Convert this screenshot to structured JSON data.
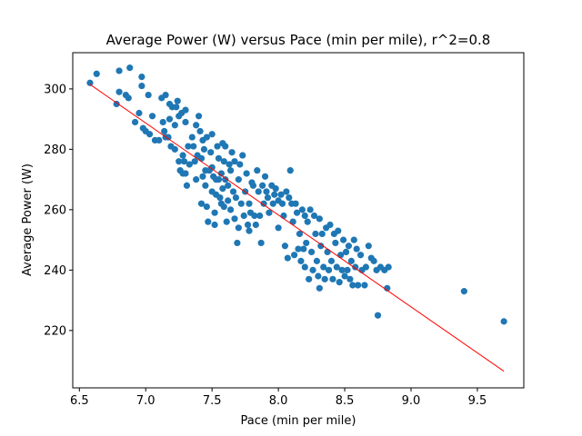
{
  "chart_data": {
    "type": "scatter",
    "title": "Average Power (W) versus Pace (min per mile), r^2=0.8",
    "xlabel": "Pace (min per mile)",
    "ylabel": "Average Power (W)",
    "xlim": [
      6.45,
      9.85
    ],
    "ylim": [
      201,
      312
    ],
    "xticks": [
      6.5,
      7.0,
      7.5,
      8.0,
      8.5,
      9.0,
      9.5
    ],
    "xtick_labels": [
      "6.5",
      "7.0",
      "7.5",
      "8.0",
      "8.5",
      "9.0",
      "9.5"
    ],
    "yticks": [
      220,
      240,
      260,
      280,
      300
    ],
    "ytick_labels": [
      "220",
      "240",
      "260",
      "280",
      "300"
    ],
    "grid": false,
    "colors": {
      "points": "#1f77b4",
      "fit": "#ff0000"
    },
    "fit_line": {
      "x": [
        6.58,
        9.7
      ],
      "y": [
        301.5,
        206.5
      ]
    },
    "points": [
      [
        6.58,
        302
      ],
      [
        6.63,
        305
      ],
      [
        6.78,
        295
      ],
      [
        6.8,
        306
      ],
      [
        6.8,
        299
      ],
      [
        6.85,
        298
      ],
      [
        6.87,
        297
      ],
      [
        6.88,
        307
      ],
      [
        6.92,
        289
      ],
      [
        6.95,
        292
      ],
      [
        6.97,
        304
      ],
      [
        6.97,
        301
      ],
      [
        6.98,
        287
      ],
      [
        7.0,
        286
      ],
      [
        7.02,
        298
      ],
      [
        7.03,
        285
      ],
      [
        7.05,
        291
      ],
      [
        7.07,
        283
      ],
      [
        7.1,
        283
      ],
      [
        7.12,
        297
      ],
      [
        7.13,
        289
      ],
      [
        7.14,
        286
      ],
      [
        7.15,
        298
      ],
      [
        7.15,
        284
      ],
      [
        7.17,
        284
      ],
      [
        7.18,
        295
      ],
      [
        7.18,
        290
      ],
      [
        7.19,
        281
      ],
      [
        7.2,
        294
      ],
      [
        7.22,
        288
      ],
      [
        7.22,
        280
      ],
      [
        7.23,
        294
      ],
      [
        7.24,
        296
      ],
      [
        7.25,
        291
      ],
      [
        7.25,
        276
      ],
      [
        7.26,
        273
      ],
      [
        7.27,
        292
      ],
      [
        7.28,
        278
      ],
      [
        7.28,
        272
      ],
      [
        7.29,
        276
      ],
      [
        7.3,
        293
      ],
      [
        7.3,
        289
      ],
      [
        7.3,
        272
      ],
      [
        7.31,
        268
      ],
      [
        7.32,
        281
      ],
      [
        7.33,
        275
      ],
      [
        7.35,
        284
      ],
      [
        7.36,
        281
      ],
      [
        7.37,
        276
      ],
      [
        7.38,
        288
      ],
      [
        7.38,
        270
      ],
      [
        7.39,
        278
      ],
      [
        7.4,
        291
      ],
      [
        7.41,
        286
      ],
      [
        7.42,
        277
      ],
      [
        7.42,
        262
      ],
      [
        7.43,
        283
      ],
      [
        7.43,
        271
      ],
      [
        7.44,
        280
      ],
      [
        7.45,
        273
      ],
      [
        7.45,
        268
      ],
      [
        7.46,
        284
      ],
      [
        7.46,
        261
      ],
      [
        7.47,
        256
      ],
      [
        7.48,
        273
      ],
      [
        7.49,
        279
      ],
      [
        7.5,
        285
      ],
      [
        7.5,
        274
      ],
      [
        7.5,
        266
      ],
      [
        7.51,
        271
      ],
      [
        7.52,
        259
      ],
      [
        7.52,
        255
      ],
      [
        7.53,
        270
      ],
      [
        7.53,
        265
      ],
      [
        7.54,
        281
      ],
      [
        7.55,
        277
      ],
      [
        7.55,
        270
      ],
      [
        7.56,
        264
      ],
      [
        7.57,
        272
      ],
      [
        7.57,
        262
      ],
      [
        7.58,
        282
      ],
      [
        7.58,
        267
      ],
      [
        7.59,
        276
      ],
      [
        7.59,
        261
      ],
      [
        7.6,
        281
      ],
      [
        7.6,
        270
      ],
      [
        7.61,
        256
      ],
      [
        7.62,
        268
      ],
      [
        7.62,
        263
      ],
      [
        7.63,
        275
      ],
      [
        7.64,
        273
      ],
      [
        7.64,
        260
      ],
      [
        7.65,
        279
      ],
      [
        7.66,
        266
      ],
      [
        7.67,
        276
      ],
      [
        7.67,
        257
      ],
      [
        7.68,
        264
      ],
      [
        7.69,
        249
      ],
      [
        7.7,
        270
      ],
      [
        7.7,
        254
      ],
      [
        7.71,
        275
      ],
      [
        7.72,
        262
      ],
      [
        7.73,
        278
      ],
      [
        7.74,
        258
      ],
      [
        7.75,
        266
      ],
      [
        7.76,
        272
      ],
      [
        7.77,
        255
      ],
      [
        7.78,
        262
      ],
      [
        7.78,
        253
      ],
      [
        7.79,
        259
      ],
      [
        7.8,
        269
      ],
      [
        7.81,
        268
      ],
      [
        7.82,
        258
      ],
      [
        7.83,
        255
      ],
      [
        7.84,
        273
      ],
      [
        7.85,
        266
      ],
      [
        7.86,
        258
      ],
      [
        7.87,
        249
      ],
      [
        7.88,
        268
      ],
      [
        7.89,
        262
      ],
      [
        7.9,
        271
      ],
      [
        7.91,
        266
      ],
      [
        7.92,
        264
      ],
      [
        7.93,
        259
      ],
      [
        7.95,
        268
      ],
      [
        7.96,
        262
      ],
      [
        7.97,
        265
      ],
      [
        7.98,
        267
      ],
      [
        8.0,
        263
      ],
      [
        8.0,
        254
      ],
      [
        8.02,
        265
      ],
      [
        8.03,
        262
      ],
      [
        8.04,
        258
      ],
      [
        8.05,
        248
      ],
      [
        8.06,
        266
      ],
      [
        8.07,
        244
      ],
      [
        8.08,
        264
      ],
      [
        8.09,
        273
      ],
      [
        8.1,
        262
      ],
      [
        8.11,
        256
      ],
      [
        8.12,
        245
      ],
      [
        8.13,
        262
      ],
      [
        8.14,
        259
      ],
      [
        8.15,
        247
      ],
      [
        8.16,
        252
      ],
      [
        8.17,
        243
      ],
      [
        8.18,
        260
      ],
      [
        8.19,
        247
      ],
      [
        8.2,
        258
      ],
      [
        8.2,
        241
      ],
      [
        8.21,
        249
      ],
      [
        8.22,
        256
      ],
      [
        8.23,
        237
      ],
      [
        8.24,
        260
      ],
      [
        8.25,
        246
      ],
      [
        8.26,
        240
      ],
      [
        8.27,
        258
      ],
      [
        8.28,
        252
      ],
      [
        8.29,
        243
      ],
      [
        8.3,
        238
      ],
      [
        8.31,
        257
      ],
      [
        8.31,
        234
      ],
      [
        8.32,
        248
      ],
      [
        8.33,
        252
      ],
      [
        8.34,
        241
      ],
      [
        8.35,
        237
      ],
      [
        8.36,
        254
      ],
      [
        8.37,
        246
      ],
      [
        8.38,
        240
      ],
      [
        8.39,
        255
      ],
      [
        8.4,
        243
      ],
      [
        8.41,
        237
      ],
      [
        8.42,
        252
      ],
      [
        8.43,
        249
      ],
      [
        8.44,
        241
      ],
      [
        8.45,
        253
      ],
      [
        8.46,
        236
      ],
      [
        8.47,
        245
      ],
      [
        8.48,
        240
      ],
      [
        8.49,
        250
      ],
      [
        8.5,
        238
      ],
      [
        8.51,
        246
      ],
      [
        8.52,
        240
      ],
      [
        8.53,
        248
      ],
      [
        8.54,
        237
      ],
      [
        8.55,
        243
      ],
      [
        8.56,
        235
      ],
      [
        8.57,
        250
      ],
      [
        8.58,
        241
      ],
      [
        8.59,
        247
      ],
      [
        8.6,
        235
      ],
      [
        8.62,
        245
      ],
      [
        8.63,
        240
      ],
      [
        8.65,
        235
      ],
      [
        8.66,
        241
      ],
      [
        8.68,
        248
      ],
      [
        8.7,
        244
      ],
      [
        8.72,
        243
      ],
      [
        8.74,
        240
      ],
      [
        8.75,
        225
      ],
      [
        8.77,
        241
      ],
      [
        8.8,
        240
      ],
      [
        8.82,
        234
      ],
      [
        8.83,
        241
      ],
      [
        9.4,
        233
      ],
      [
        9.7,
        223
      ]
    ]
  }
}
